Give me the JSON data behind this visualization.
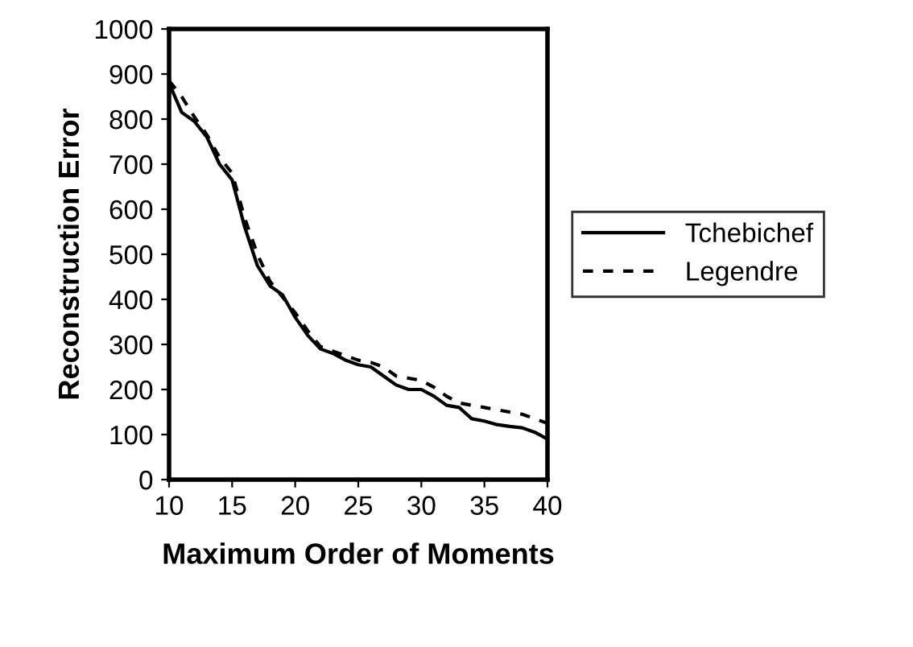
{
  "chart_data": {
    "type": "line",
    "xlabel": "Maximum Order of Moments",
    "ylabel": "Reconstruction Error",
    "x": [
      10,
      11,
      12,
      13,
      14,
      15,
      16,
      17,
      18,
      19,
      20,
      21,
      22,
      23,
      24,
      25,
      26,
      27,
      28,
      29,
      30,
      31,
      32,
      33,
      34,
      35,
      36,
      37,
      38,
      39,
      40
    ],
    "series": [
      {
        "name": "Tchebichef",
        "color": "#000000",
        "line_style": "solid",
        "values": [
          880,
          815,
          795,
          760,
          700,
          665,
          560,
          475,
          430,
          410,
          360,
          320,
          290,
          280,
          265,
          255,
          250,
          230,
          210,
          200,
          200,
          185,
          165,
          160,
          135,
          130,
          122,
          118,
          115,
          105,
          90
        ]
      },
      {
        "name": "Legendre",
        "color": "#000000",
        "line_style": "dotted",
        "values": [
          885,
          850,
          805,
          765,
          715,
          680,
          580,
          500,
          440,
          405,
          370,
          330,
          295,
          285,
          275,
          265,
          260,
          250,
          230,
          225,
          220,
          205,
          185,
          170,
          165,
          160,
          155,
          150,
          145,
          135,
          125
        ]
      }
    ],
    "xlim": [
      10,
      40
    ],
    "xticks": [
      10,
      15,
      20,
      25,
      30,
      35,
      40
    ],
    "ylim": [
      0,
      1000
    ],
    "yticks": [
      0,
      100,
      200,
      300,
      400,
      500,
      600,
      700,
      800,
      900,
      1000
    ],
    "grid": false,
    "legend": "right"
  }
}
